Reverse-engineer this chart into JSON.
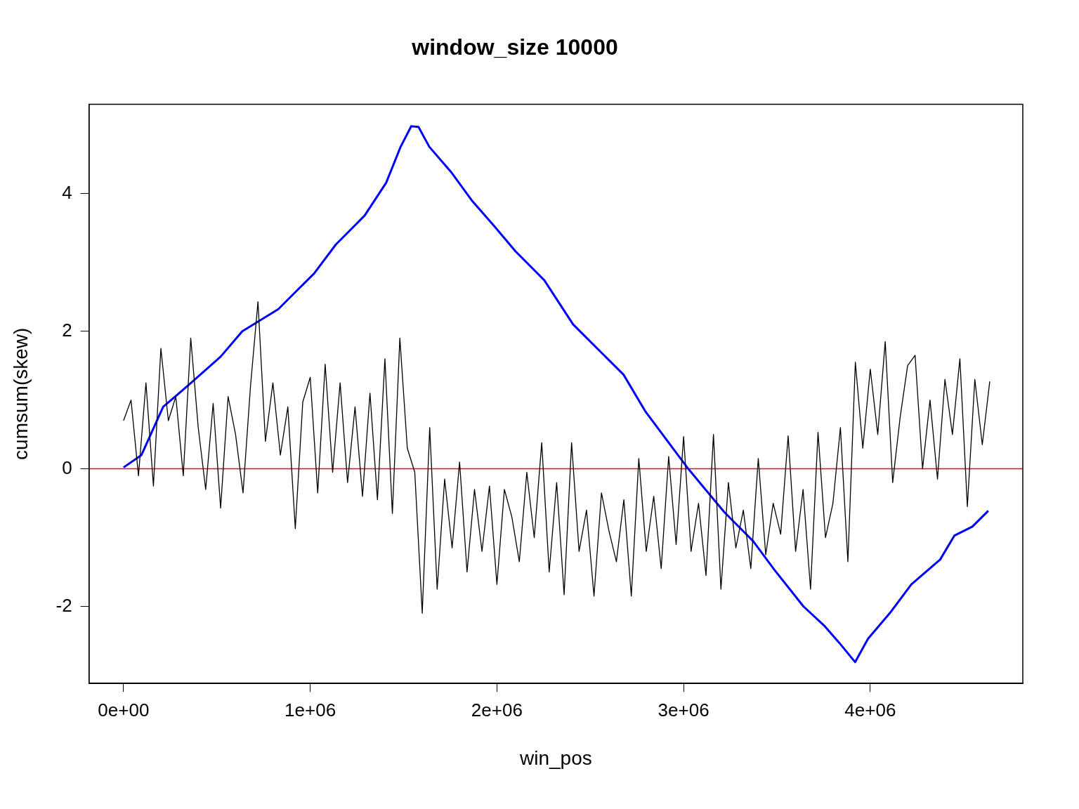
{
  "chart_data": {
    "type": "line",
    "title": "window_size 10000",
    "xlabel": "win_pos",
    "ylabel": "cumsum(skew)",
    "xlim": [
      -185000,
      4817000
    ],
    "ylim": [
      -3.12,
      5.3
    ],
    "xticks": [
      {
        "value": 0,
        "label": "0e+00"
      },
      {
        "value": 1000000,
        "label": "1e+06"
      },
      {
        "value": 2000000,
        "label": "2e+06"
      },
      {
        "value": 3000000,
        "label": "3e+06"
      },
      {
        "value": 4000000,
        "label": "4e+06"
      }
    ],
    "yticks": [
      -2,
      0,
      2,
      4
    ],
    "grid": false,
    "legend": false,
    "marker": "none",
    "line_style": "solid",
    "ref_lines": [
      {
        "axis": "y",
        "value": 0,
        "color": "#ff0000"
      }
    ],
    "series": [
      {
        "color": "#000000",
        "x": [
          0,
          40000,
          80000,
          120000,
          160000,
          200000,
          240000,
          280000,
          320000,
          360000,
          400000,
          440000,
          480000,
          520000,
          560000,
          600000,
          640000,
          680000,
          720000,
          760000,
          800000,
          840000,
          880000,
          920000,
          960000,
          1000000,
          1040000,
          1080000,
          1120000,
          1160000,
          1200000,
          1240000,
          1280000,
          1320000,
          1360000,
          1400000,
          1440000,
          1480000,
          1520000,
          1560000,
          1600000,
          1640000,
          1680000,
          1720000,
          1760000,
          1800000,
          1840000,
          1880000,
          1920000,
          1960000,
          2000000,
          2040000,
          2080000,
          2120000,
          2160000,
          2200000,
          2240000,
          2280000,
          2320000,
          2360000,
          2400000,
          2440000,
          2480000,
          2520000,
          2560000,
          2600000,
          2640000,
          2680000,
          2720000,
          2760000,
          2800000,
          2840000,
          2880000,
          2920000,
          2960000,
          3000000,
          3040000,
          3080000,
          3120000,
          3160000,
          3200000,
          3240000,
          3280000,
          3320000,
          3360000,
          3400000,
          3440000,
          3480000,
          3520000,
          3560000,
          3600000,
          3640000,
          3680000,
          3720000,
          3760000,
          3800000,
          3840000,
          3880000,
          3920000,
          3960000,
          4000000,
          4040000,
          4080000,
          4120000,
          4160000,
          4200000,
          4240000,
          4280000,
          4320000,
          4360000,
          4400000,
          4440000,
          4480000,
          4520000,
          4560000,
          4600000,
          4640000
        ],
        "values": [
          0.7,
          1.0,
          -0.1,
          1.25,
          -0.25,
          1.75,
          0.7,
          1.05,
          -0.1,
          1.9,
          0.6,
          -0.3,
          0.95,
          -0.57,
          1.05,
          0.5,
          -0.35,
          1.2,
          2.43,
          0.4,
          1.25,
          0.2,
          0.9,
          -0.87,
          0.97,
          1.33,
          -0.35,
          1.52,
          -0.05,
          1.25,
          -0.2,
          0.9,
          -0.4,
          1.1,
          -0.45,
          1.6,
          -0.65,
          1.9,
          0.3,
          -0.05,
          -2.1,
          0.6,
          -1.75,
          -0.15,
          -1.15,
          0.1,
          -1.5,
          -0.3,
          -1.2,
          -0.25,
          -1.68,
          -0.3,
          -0.7,
          -1.35,
          -0.05,
          -1.0,
          0.38,
          -1.5,
          -0.2,
          -1.83,
          0.38,
          -1.2,
          -0.6,
          -1.85,
          -0.35,
          -0.9,
          -1.35,
          -0.45,
          -1.85,
          0.15,
          -1.2,
          -0.4,
          -1.45,
          0.18,
          -1.1,
          0.47,
          -1.2,
          -0.5,
          -1.55,
          0.5,
          -1.75,
          -0.2,
          -1.15,
          -0.6,
          -1.45,
          0.15,
          -1.25,
          -0.5,
          -0.95,
          0.48,
          -1.2,
          -0.3,
          -1.75,
          0.53,
          -1.0,
          -0.5,
          0.6,
          -1.35,
          1.55,
          0.3,
          1.45,
          0.5,
          1.85,
          -0.2,
          0.75,
          1.5,
          1.65,
          0.0,
          1.0,
          -0.15,
          1.3,
          0.5,
          1.6,
          -0.55,
          1.3,
          0.35,
          1.27
        ]
      },
      {
        "color": "#0000ff",
        "x": [
          0,
          96000,
          212000,
          366000,
          520000,
          636000,
          829000,
          906000,
          1021000,
          1137000,
          1291000,
          1407000,
          1484000,
          1541000,
          1580000,
          1638000,
          1753000,
          1869000,
          1985000,
          2100000,
          2254000,
          2408000,
          2563000,
          2678000,
          2794000,
          2909000,
          3025000,
          3218000,
          3372000,
          3487000,
          3642000,
          3757000,
          3834000,
          3919000,
          3988000,
          4104000,
          4220000,
          4374000,
          4451000,
          4547000,
          4632000
        ],
        "values": [
          0.02,
          0.2,
          0.9,
          1.26,
          1.63,
          2.0,
          2.32,
          2.53,
          2.84,
          3.26,
          3.68,
          4.16,
          4.68,
          4.98,
          4.97,
          4.68,
          4.32,
          3.89,
          3.53,
          3.16,
          2.74,
          2.1,
          1.68,
          1.37,
          0.84,
          0.42,
          0.0,
          -0.63,
          -1.05,
          -1.47,
          -2.0,
          -2.29,
          -2.53,
          -2.81,
          -2.47,
          -2.1,
          -1.68,
          -1.32,
          -0.97,
          -0.84,
          -0.61
        ]
      }
    ]
  }
}
